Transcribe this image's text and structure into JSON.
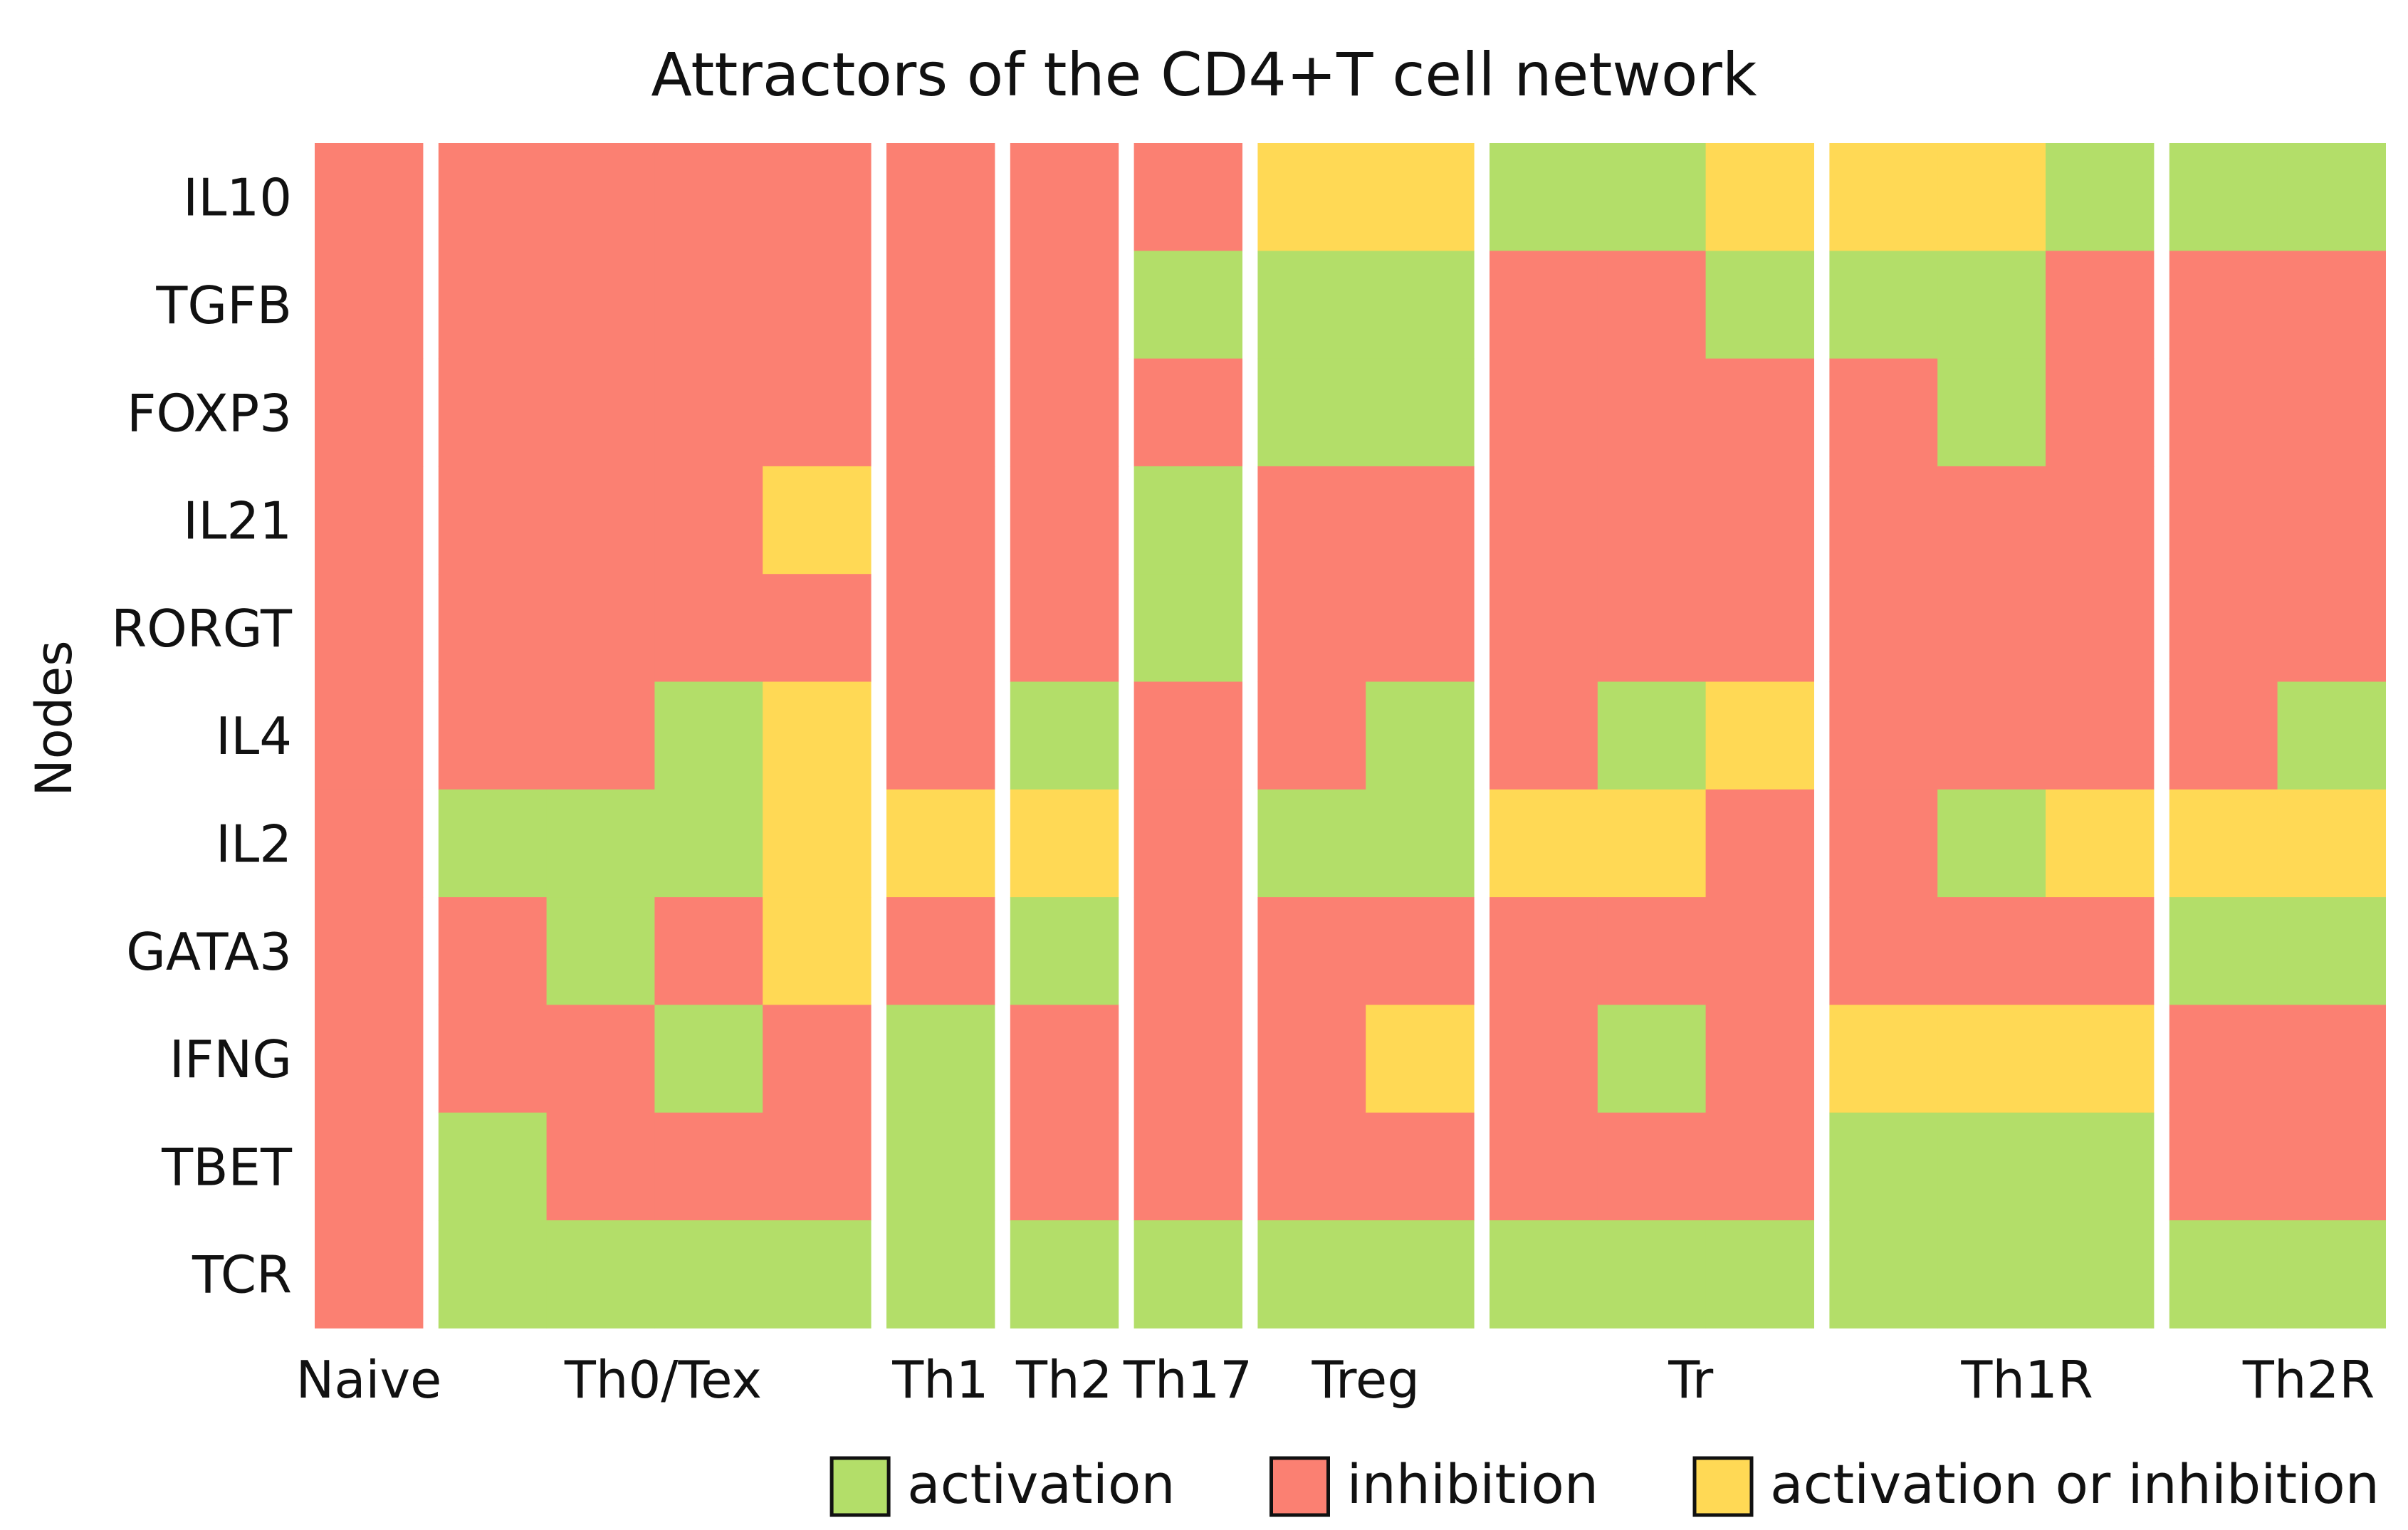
{
  "chart_data": {
    "type": "heatmap",
    "title": "Attractors of the CD4+T cell network",
    "ylabel": "Nodes",
    "xlabel": "",
    "rows": [
      "IL10",
      "TGFB",
      "FOXP3",
      "IL21",
      "RORGT",
      "IL4",
      "IL2",
      "GATA3",
      "IFNG",
      "TBET",
      "TCR"
    ],
    "groups": [
      {
        "name": "Naive",
        "columns": [
          [
            "i",
            "i",
            "i",
            "i",
            "i",
            "i",
            "i",
            "i",
            "i",
            "i",
            "i"
          ]
        ]
      },
      {
        "name": "Th0/Tex",
        "columns": [
          [
            "i",
            "i",
            "i",
            "i",
            "i",
            "i",
            "a",
            "i",
            "i",
            "a",
            "a"
          ],
          [
            "i",
            "i",
            "i",
            "i",
            "i",
            "i",
            "a",
            "a",
            "i",
            "i",
            "a"
          ],
          [
            "i",
            "i",
            "i",
            "i",
            "i",
            "a",
            "a",
            "i",
            "a",
            "i",
            "a"
          ],
          [
            "i",
            "i",
            "i",
            "b",
            "i",
            "b",
            "b",
            "b",
            "i",
            "i",
            "a"
          ]
        ]
      },
      {
        "name": "Th1",
        "columns": [
          [
            "i",
            "i",
            "i",
            "i",
            "i",
            "i",
            "b",
            "i",
            "a",
            "a",
            "a"
          ]
        ]
      },
      {
        "name": "Th2",
        "columns": [
          [
            "i",
            "i",
            "i",
            "i",
            "i",
            "a",
            "b",
            "a",
            "i",
            "i",
            "a"
          ]
        ]
      },
      {
        "name": "Th17",
        "columns": [
          [
            "i",
            "a",
            "i",
            "a",
            "a",
            "i",
            "i",
            "i",
            "i",
            "i",
            "a"
          ]
        ]
      },
      {
        "name": "Treg",
        "columns": [
          [
            "b",
            "a",
            "a",
            "i",
            "i",
            "i",
            "a",
            "i",
            "i",
            "i",
            "a"
          ],
          [
            "b",
            "a",
            "a",
            "i",
            "i",
            "a",
            "a",
            "i",
            "b",
            "i",
            "a"
          ]
        ]
      },
      {
        "name": "Tr",
        "columns": [
          [
            "a",
            "i",
            "i",
            "i",
            "i",
            "i",
            "b",
            "i",
            "i",
            "i",
            "a"
          ],
          [
            "a",
            "i",
            "i",
            "i",
            "i",
            "a",
            "b",
            "i",
            "a",
            "i",
            "a"
          ],
          [
            "b",
            "a",
            "i",
            "i",
            "i",
            "b",
            "i",
            "i",
            "i",
            "i",
            "a"
          ]
        ]
      },
      {
        "name": "Th1R",
        "columns": [
          [
            "b",
            "a",
            "i",
            "i",
            "i",
            "i",
            "i",
            "i",
            "b",
            "a",
            "a"
          ],
          [
            "b",
            "a",
            "a",
            "i",
            "i",
            "i",
            "a",
            "i",
            "b",
            "a",
            "a"
          ],
          [
            "a",
            "i",
            "i",
            "i",
            "i",
            "i",
            "b",
            "i",
            "b",
            "a",
            "a"
          ]
        ]
      },
      {
        "name": "Th2R",
        "columns": [
          [
            "a",
            "i",
            "i",
            "i",
            "i",
            "i",
            "b",
            "a",
            "i",
            "i",
            "a"
          ],
          [
            "a",
            "i",
            "i",
            "i",
            "i",
            "a",
            "b",
            "a",
            "i",
            "i",
            "a"
          ]
        ]
      }
    ],
    "states": {
      "a": {
        "label": "activation",
        "color": "#b3de69"
      },
      "i": {
        "label": "inhibition",
        "color": "#fb8072"
      },
      "b": {
        "label": "activation or inhibition",
        "color": "#ffd955"
      }
    },
    "legend": [
      "a",
      "i",
      "b"
    ],
    "legend_position": "bottom-right",
    "grid": false
  }
}
